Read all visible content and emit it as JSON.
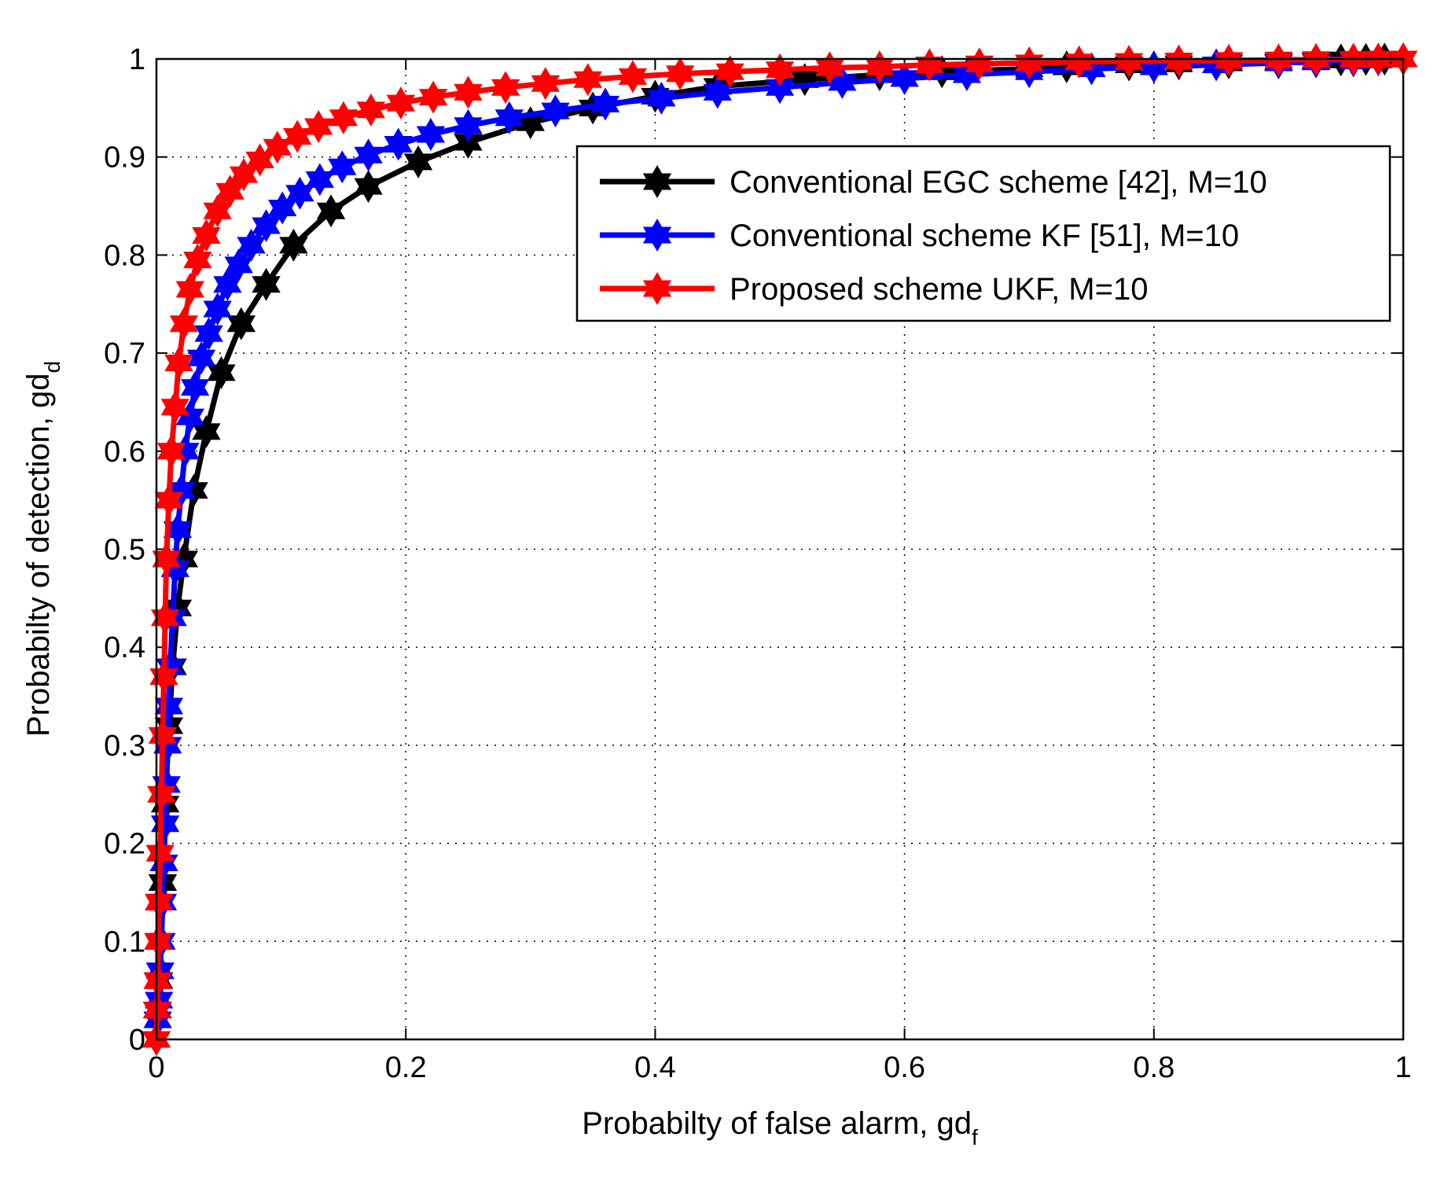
{
  "chart_data": {
    "type": "line",
    "title": "",
    "xlabel": {
      "text": "Probabilty of false alarm, gd",
      "subscript": "f"
    },
    "ylabel": {
      "text": "Probabilty of detection, gd",
      "subscript": "d"
    },
    "xlim": [
      0,
      1
    ],
    "ylim": [
      0,
      1
    ],
    "xticks": [
      0,
      0.2,
      0.4,
      0.6,
      0.8,
      1
    ],
    "yticks": [
      0,
      0.1,
      0.2,
      0.3,
      0.4,
      0.5,
      0.6,
      0.7,
      0.8,
      0.9,
      1
    ],
    "xtick_labels": [
      "0",
      "0.2",
      "0.4",
      "0.6",
      "0.8",
      "1"
    ],
    "ytick_labels": [
      "0",
      "0.1",
      "0.2",
      "0.3",
      "0.4",
      "0.5",
      "0.6",
      "0.7",
      "0.8",
      "0.9",
      "1"
    ],
    "grid": true,
    "legend_position": "top-right",
    "series": [
      {
        "name": "Conventional EGC scheme [42], M=10",
        "color": "#000000",
        "marker": "hexagram",
        "x": [
          0.0,
          0.001,
          0.002,
          0.003,
          0.005,
          0.007,
          0.01,
          0.013,
          0.017,
          0.022,
          0.03,
          0.04,
          0.052,
          0.068,
          0.088,
          0.11,
          0.14,
          0.17,
          0.21,
          0.25,
          0.3,
          0.35,
          0.4,
          0.45,
          0.52,
          0.58,
          0.63,
          0.7,
          0.73,
          0.78,
          0.82,
          0.86,
          0.9,
          0.93,
          0.95,
          0.97,
          0.985,
          1.0
        ],
        "y": [
          0.0,
          0.03,
          0.06,
          0.1,
          0.16,
          0.24,
          0.32,
          0.38,
          0.44,
          0.49,
          0.56,
          0.62,
          0.68,
          0.73,
          0.77,
          0.81,
          0.845,
          0.87,
          0.895,
          0.915,
          0.935,
          0.95,
          0.962,
          0.972,
          0.979,
          0.984,
          0.987,
          0.99,
          0.992,
          0.994,
          0.995,
          0.996,
          0.997,
          0.998,
          0.999,
          0.9995,
          0.9998,
          1.0
        ]
      },
      {
        "name": "Conventional scheme KF [51], M=10",
        "color": "#0000ff",
        "marker": "hexagram",
        "x": [
          0.0,
          0.001,
          0.002,
          0.003,
          0.004,
          0.005,
          0.006,
          0.007,
          0.008,
          0.009,
          0.01,
          0.011,
          0.013,
          0.015,
          0.017,
          0.02,
          0.023,
          0.027,
          0.031,
          0.036,
          0.042,
          0.049,
          0.057,
          0.066,
          0.076,
          0.088,
          0.101,
          0.115,
          0.131,
          0.149,
          0.17,
          0.194,
          0.22,
          0.25,
          0.283,
          0.32,
          0.36,
          0.405,
          0.45,
          0.5,
          0.55,
          0.6,
          0.65,
          0.7,
          0.75,
          0.8,
          0.85,
          0.9,
          0.93,
          0.96,
          0.98,
          1.0
        ],
        "y": [
          0.0,
          0.02,
          0.04,
          0.07,
          0.1,
          0.14,
          0.18,
          0.22,
          0.26,
          0.3,
          0.34,
          0.38,
          0.43,
          0.48,
          0.52,
          0.56,
          0.6,
          0.635,
          0.665,
          0.695,
          0.72,
          0.745,
          0.77,
          0.79,
          0.81,
          0.83,
          0.848,
          0.863,
          0.877,
          0.89,
          0.902,
          0.913,
          0.923,
          0.932,
          0.94,
          0.947,
          0.954,
          0.96,
          0.966,
          0.971,
          0.976,
          0.98,
          0.984,
          0.987,
          0.99,
          0.992,
          0.994,
          0.996,
          0.997,
          0.998,
          0.999,
          1.0
        ]
      },
      {
        "name": "Proposed scheme UKF, M=10",
        "color": "#ff0000",
        "marker": "hexagram",
        "x": [
          0.0,
          0.0005,
          0.001,
          0.0015,
          0.002,
          0.003,
          0.004,
          0.005,
          0.006,
          0.007,
          0.008,
          0.01,
          0.012,
          0.015,
          0.018,
          0.022,
          0.027,
          0.033,
          0.04,
          0.049,
          0.059,
          0.07,
          0.083,
          0.097,
          0.113,
          0.13,
          0.15,
          0.172,
          0.196,
          0.222,
          0.25,
          0.28,
          0.312,
          0.346,
          0.382,
          0.42,
          0.46,
          0.5,
          0.54,
          0.58,
          0.62,
          0.66,
          0.7,
          0.74,
          0.78,
          0.82,
          0.86,
          0.9,
          0.93,
          0.96,
          0.98,
          1.0
        ],
        "y": [
          0.0,
          0.03,
          0.06,
          0.1,
          0.14,
          0.19,
          0.25,
          0.31,
          0.37,
          0.43,
          0.49,
          0.55,
          0.6,
          0.645,
          0.69,
          0.73,
          0.765,
          0.795,
          0.82,
          0.845,
          0.865,
          0.882,
          0.897,
          0.91,
          0.921,
          0.931,
          0.94,
          0.948,
          0.955,
          0.961,
          0.966,
          0.971,
          0.975,
          0.979,
          0.982,
          0.985,
          0.987,
          0.989,
          0.991,
          0.992,
          0.994,
          0.995,
          0.996,
          0.997,
          0.9975,
          0.998,
          0.9985,
          0.999,
          0.9994,
          0.9997,
          0.9999,
          1.0
        ]
      }
    ]
  }
}
